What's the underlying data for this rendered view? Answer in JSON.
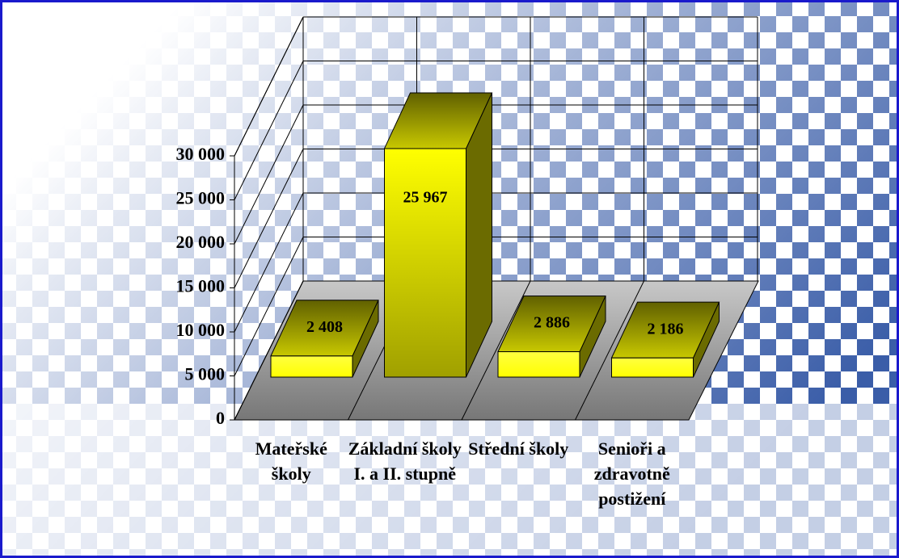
{
  "chart_data": {
    "type": "bar3d",
    "categories": [
      "Mateřské školy",
      "Základní školy I. a II. stupně",
      "Střední školy",
      "Senioři a zdravotně postižení"
    ],
    "values": [
      2408,
      25967,
      2886,
      2186
    ],
    "value_labels": [
      "2 408",
      "25 967",
      "2 886",
      "2 186"
    ],
    "color": "#ffff00",
    "ylim": [
      0,
      30000
    ],
    "yticks": [
      0,
      {
        "value": 5000,
        "label": "5 000"
      },
      {
        "value": 10000,
        "label": "10 000"
      },
      {
        "value": 15000,
        "label": "15 000"
      },
      {
        "value": 20000,
        "label": "20 000"
      },
      {
        "value": 25000,
        "label": "25 000"
      },
      {
        "value": 30000,
        "label": "30 000"
      }
    ],
    "grid": true
  }
}
